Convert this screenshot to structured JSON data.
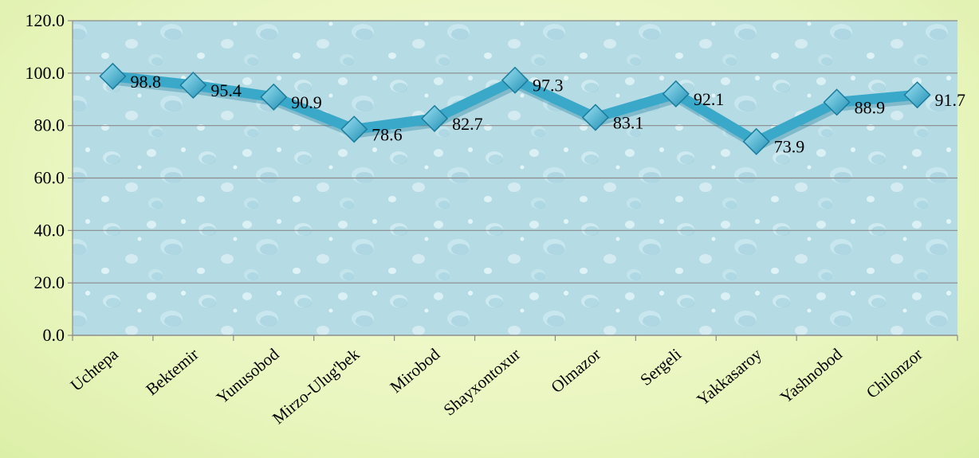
{
  "chart_data": {
    "type": "line",
    "title": "",
    "xlabel": "",
    "ylabel": "",
    "categories": [
      "Uchtepa",
      "Bektemir",
      "Yunusobod",
      "Mirzo-Ulug'bek",
      "Mirobod",
      "Shayxontoxur",
      "Olmazor",
      "Sergeli",
      "Yakkasaroy",
      "Yashnobod",
      "Chilonzor"
    ],
    "series": [
      {
        "values": [
          98.8,
          95.4,
          90.9,
          78.6,
          82.7,
          97.3,
          83.1,
          92.1,
          73.9,
          88.9,
          91.7
        ]
      }
    ],
    "ylim": [
      0,
      120
    ],
    "yticks": [
      "0.0",
      "20.0",
      "40.0",
      "60.0",
      "80.0",
      "100.0",
      "120.0"
    ],
    "grid": true,
    "legend": "none",
    "colors": {
      "line": "#3aa9c9",
      "marker": "#4cb8d8",
      "gridline": "#8a8a8a",
      "plot_background": "#b9dde6",
      "page_background": "#eaf6c0"
    }
  }
}
